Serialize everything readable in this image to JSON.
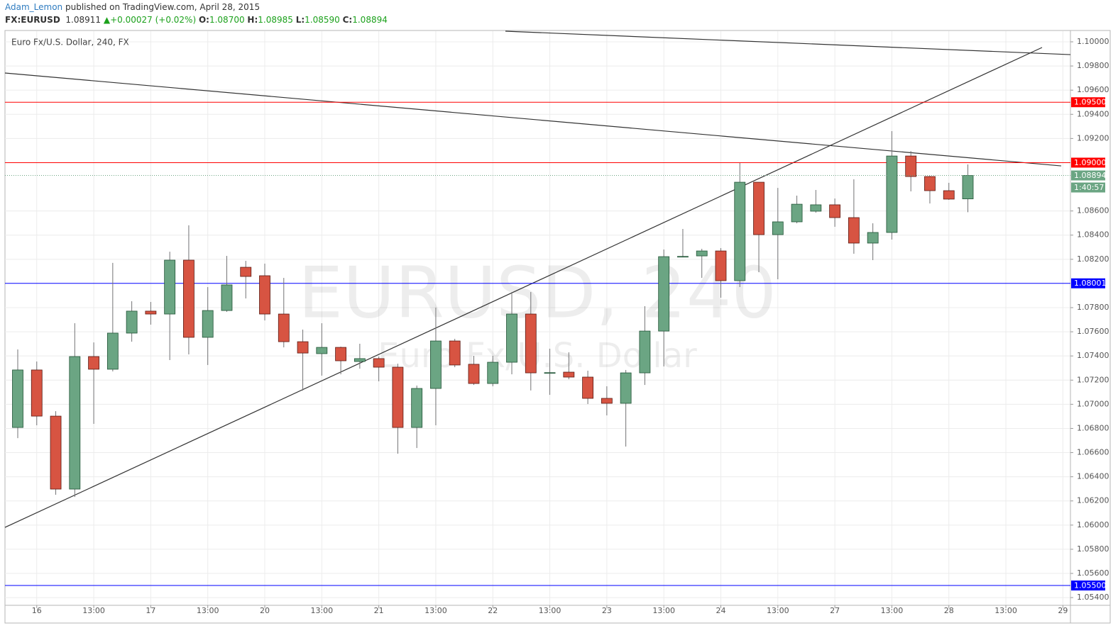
{
  "header": {
    "author": "Adam_Lemon",
    "published": "published on TradingView.com, April 28, 2015",
    "symbol": "FX:EURUSD",
    "last": "1.08911",
    "change": "▲+0.00027 (+0.02%)",
    "ohlc": [
      {
        "key": "O:",
        "text": "1.08700"
      },
      {
        "key": "H:",
        "text": "1.08985"
      },
      {
        "key": "L:",
        "text": "1.08590"
      },
      {
        "key": "C:",
        "text": "1.08894"
      }
    ]
  },
  "chart_data": {
    "type": "candlestick",
    "title": "Euro Fx/U.S. Dollar, 240, FX",
    "watermark": "EURUSD, 240",
    "watermark_sub": "Euro Fx/U.S. Dollar",
    "categories": [
      null,
      "16",
      null,
      null,
      "13:00",
      null,
      null,
      "17",
      null,
      null,
      "13:00",
      null,
      null,
      "20",
      null,
      null,
      "13:00",
      null,
      null,
      "21",
      null,
      null,
      "13:00",
      null,
      null,
      "22",
      null,
      null,
      "13:00",
      null,
      null,
      "23",
      null,
      null,
      "13:00",
      null,
      null,
      "24",
      null,
      null,
      "13:00",
      null,
      null,
      "27",
      null,
      null,
      "13:00",
      null,
      null,
      "28",
      null,
      null,
      "13:00",
      null,
      null,
      "29"
    ],
    "open": [
      1.06808,
      1.07284,
      1.06902,
      1.06298,
      1.07395,
      1.0729,
      1.07589,
      1.07771,
      1.07747,
      1.08193,
      1.07554,
      1.07776,
      1.08134,
      1.08064,
      1.07747,
      1.07518,
      1.07419,
      1.07471,
      1.07354,
      1.07378,
      1.07307,
      1.06808,
      1.07131,
      1.07524,
      1.07331,
      1.07172,
      1.07348,
      1.07747,
      1.0726,
      1.07266,
      1.07225,
      1.07049,
      1.07008,
      1.0726,
      1.07606,
      1.08222,
      1.08228,
      1.08269,
      1.08023,
      1.08838,
      1.08404,
      1.0851,
      1.08598,
      1.08651,
      1.08545,
      1.08334,
      1.08422,
      1.09055,
      1.08885,
      1.08768,
      1.087,
      null,
      null,
      null,
      null,
      null
    ],
    "high": [
      1.07454,
      1.07354,
      1.06943,
      1.07671,
      1.07512,
      1.0817,
      1.07853,
      1.07847,
      1.08263,
      1.08481,
      1.0797,
      1.08228,
      1.08187,
      1.08164,
      1.08046,
      1.07618,
      1.07671,
      1.07477,
      1.07501,
      1.07395,
      1.07336,
      1.07155,
      1.078,
      1.07542,
      1.07401,
      1.07401,
      1.07929,
      1.07929,
      1.0746,
      1.0743,
      1.07278,
      1.07149,
      1.07284,
      1.07812,
      1.08281,
      1.08451,
      1.08287,
      1.08293,
      1.08997,
      1.08838,
      1.08791,
      1.08727,
      1.08774,
      1.08703,
      1.08862,
      1.08498,
      1.09261,
      1.09096,
      1.08891,
      1.08833,
      1.08985,
      null,
      null,
      null,
      null,
      null
    ],
    "low": [
      1.0672,
      1.06826,
      1.06251,
      1.06233,
      1.06838,
      1.07272,
      1.07518,
      1.07659,
      1.07366,
      1.07413,
      1.07325,
      1.07765,
      1.07876,
      1.07694,
      1.07471,
      1.07114,
      1.07237,
      1.07248,
      1.07295,
      1.0719,
      1.06591,
      1.06638,
      1.06826,
      1.07307,
      1.0716,
      1.07149,
      1.07248,
      1.07114,
      1.07078,
      1.07207,
      1.07002,
      1.06908,
      1.0665,
      1.0716,
      1.07313,
      1.08216,
      1.08046,
      1.07882,
      1.0797,
      1.08093,
      1.08035,
      1.08498,
      1.08586,
      1.08469,
      1.08246,
      1.08193,
      1.08363,
      1.08762,
      1.08662,
      1.08692,
      1.0859,
      null,
      null,
      null,
      null,
      null
    ],
    "close": [
      1.07284,
      1.06902,
      1.06298,
      1.07395,
      1.0729,
      1.07589,
      1.07771,
      1.07747,
      1.08193,
      1.07554,
      1.07776,
      1.07988,
      1.08058,
      1.07747,
      1.07518,
      1.07424,
      1.07471,
      1.0736,
      1.07378,
      1.07307,
      1.06808,
      1.07131,
      1.07524,
      1.07325,
      1.07172,
      1.07348,
      1.07747,
      1.0726,
      1.07262,
      1.07225,
      1.07049,
      1.07008,
      1.0726,
      1.07606,
      1.08222,
      1.08224,
      1.08269,
      1.08023,
      1.08838,
      1.08404,
      1.0851,
      1.08656,
      1.08651,
      1.08545,
      1.08334,
      1.08422,
      1.09055,
      1.08885,
      1.08768,
      1.08698,
      1.08894,
      null,
      null,
      null,
      null,
      null
    ],
    "up_color": "#6ba583",
    "down_color": "#d75442",
    "ylim": [
      1.05336,
      1.10088
    ],
    "yticks": [
      {
        "value": 1.1,
        "label": "1.10000"
      },
      {
        "value": 1.098,
        "label": "1.09800"
      },
      {
        "value": 1.096,
        "label": "1.09600"
      },
      {
        "value": 1.094,
        "label": "1.09400"
      },
      {
        "value": 1.092,
        "label": "1.09200"
      },
      {
        "value": 1.086,
        "label": "1.08600"
      },
      {
        "value": 1.084,
        "label": "1.08400"
      },
      {
        "value": 1.082,
        "label": "1.08200"
      },
      {
        "value": 1.078,
        "label": "1.07800"
      },
      {
        "value": 1.076,
        "label": "1.07600"
      },
      {
        "value": 1.074,
        "label": "1.07400"
      },
      {
        "value": 1.072,
        "label": "1.07200"
      },
      {
        "value": 1.07,
        "label": "1.07000"
      },
      {
        "value": 1.068,
        "label": "1.06800"
      },
      {
        "value": 1.066,
        "label": "1.06600"
      },
      {
        "value": 1.064,
        "label": "1.06400"
      },
      {
        "value": 1.062,
        "label": "1.06200"
      },
      {
        "value": 1.06,
        "label": "1.06000"
      },
      {
        "value": 1.058,
        "label": "1.05800"
      },
      {
        "value": 1.056,
        "label": "1.05600"
      },
      {
        "value": 1.054,
        "label": "1.05400"
      }
    ],
    "grid": true,
    "hlines": [
      {
        "value": 1.095,
        "label": "1.09500",
        "color": "#ff0000"
      },
      {
        "value": 1.09,
        "label": "1.09000",
        "color": "#ff0000"
      },
      {
        "value": 1.08001,
        "label": "1.08001",
        "color": "#0000ff"
      },
      {
        "value": 1.055,
        "label": "1.05500",
        "color": "#0000ff"
      }
    ],
    "current_price": {
      "value": 1.08894,
      "label": "1.08894",
      "countdown": "1:40:57",
      "color": "#6ba583"
    },
    "trendlines": [
      {
        "start": 1.10088,
        "end": 1.09894
      },
      {
        "start": 1.09742,
        "end": 1.08973
      },
      {
        "start": 1.05981,
        "end": 1.09953
      }
    ]
  }
}
